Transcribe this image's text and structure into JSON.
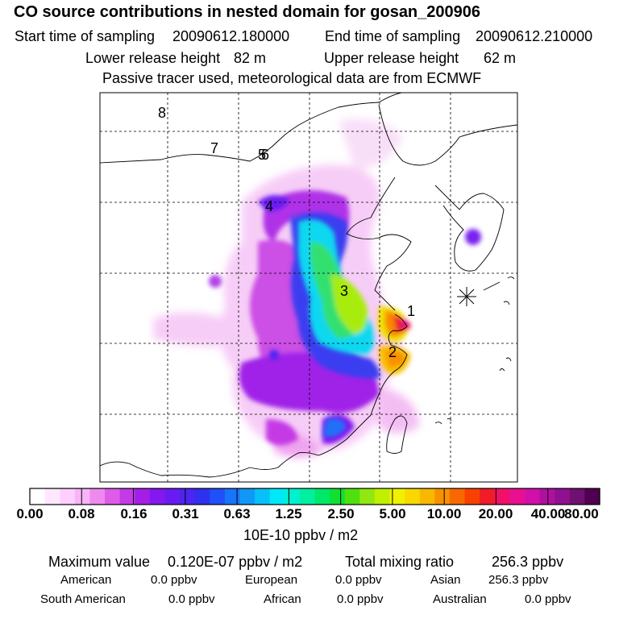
{
  "header": {
    "title": "CO  source contributions in nested domain for gosan_200906",
    "start_label": "Start time of sampling",
    "start_value": "20090612.180000",
    "end_label": "End time of sampling",
    "end_value": "20090612.210000",
    "lower_label": "Lower release height",
    "lower_value": "82 m",
    "upper_label": "Upper release height",
    "upper_value": "62 m",
    "note": "Passive tracer used, meteorological data are from ECMWF"
  },
  "map": {
    "trajectory_labels": [
      "1",
      "2",
      "3",
      "4",
      "5",
      "6",
      "7",
      "8"
    ],
    "receptor_marker": "gosan-receptor-star"
  },
  "colorbar": {
    "tick_labels": [
      "0.00",
      "0.08",
      "0.16",
      "0.31",
      "0.63",
      "1.25",
      "2.50",
      "5.00",
      "10.00",
      "20.00",
      "40.00",
      "80.00"
    ],
    "unit": "10E-10 ppbv / m2",
    "colors": [
      "#ffffff",
      "#ffe8ff",
      "#ffd0ff",
      "#f8b4f8",
      "#ee8aee",
      "#dd5ce8",
      "#c43ae6",
      "#a51ee8",
      "#8418ee",
      "#6a1cf0",
      "#4d24f0",
      "#3030f0",
      "#2050f8",
      "#1874f8",
      "#1098f8",
      "#08c0f8",
      "#00e8f8",
      "#00f0d0",
      "#00f0a0",
      "#00e868",
      "#10e030",
      "#50e010",
      "#90e810",
      "#c0f000",
      "#f0f000",
      "#f8d800",
      "#f8b800",
      "#f89000",
      "#f86800",
      "#f84000",
      "#f01c28",
      "#f0106a",
      "#e81090",
      "#d010a8",
      "#b010a0",
      "#901090",
      "#701070",
      "#500050"
    ]
  },
  "stats": {
    "max_label": "Maximum value",
    "max_value": "0.120E-07 ppbv / m2",
    "total_label": "Total mixing ratio",
    "total_value": "256.3 ppbv",
    "regions": [
      {
        "name": "American",
        "value": "0.0 ppbv"
      },
      {
        "name": "European",
        "value": "0.0 ppbv"
      },
      {
        "name": "Asian",
        "value": "256.3 ppbv"
      },
      {
        "name": "South American",
        "value": "0.0 ppbv"
      },
      {
        "name": "African",
        "value": "0.0 ppbv"
      },
      {
        "name": "Australian",
        "value": "0.0 ppbv"
      }
    ]
  }
}
